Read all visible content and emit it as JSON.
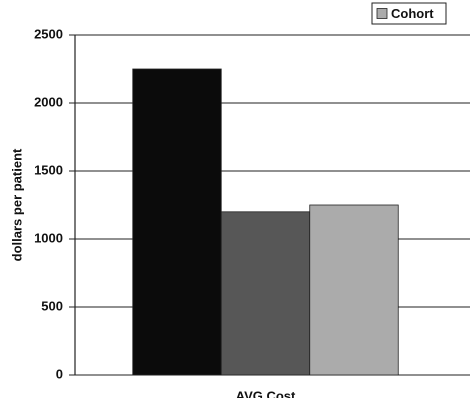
{
  "chart_data": {
    "type": "bar",
    "y_label": "dollars per patient",
    "categories": [
      "AVG Cost"
    ],
    "series": [
      {
        "name": null,
        "color": "#0b0b0b",
        "values": [
          2250
        ]
      },
      {
        "name": null,
        "color": "#575757",
        "values": [
          1200
        ]
      },
      {
        "name": "Cohort",
        "color": "#ababab",
        "values": [
          1250
        ]
      }
    ],
    "ylim": [
      0,
      2500
    ],
    "yticks": [
      0,
      500,
      1000,
      1500,
      2000,
      2500
    ],
    "grid": true,
    "legend": "top-right"
  }
}
